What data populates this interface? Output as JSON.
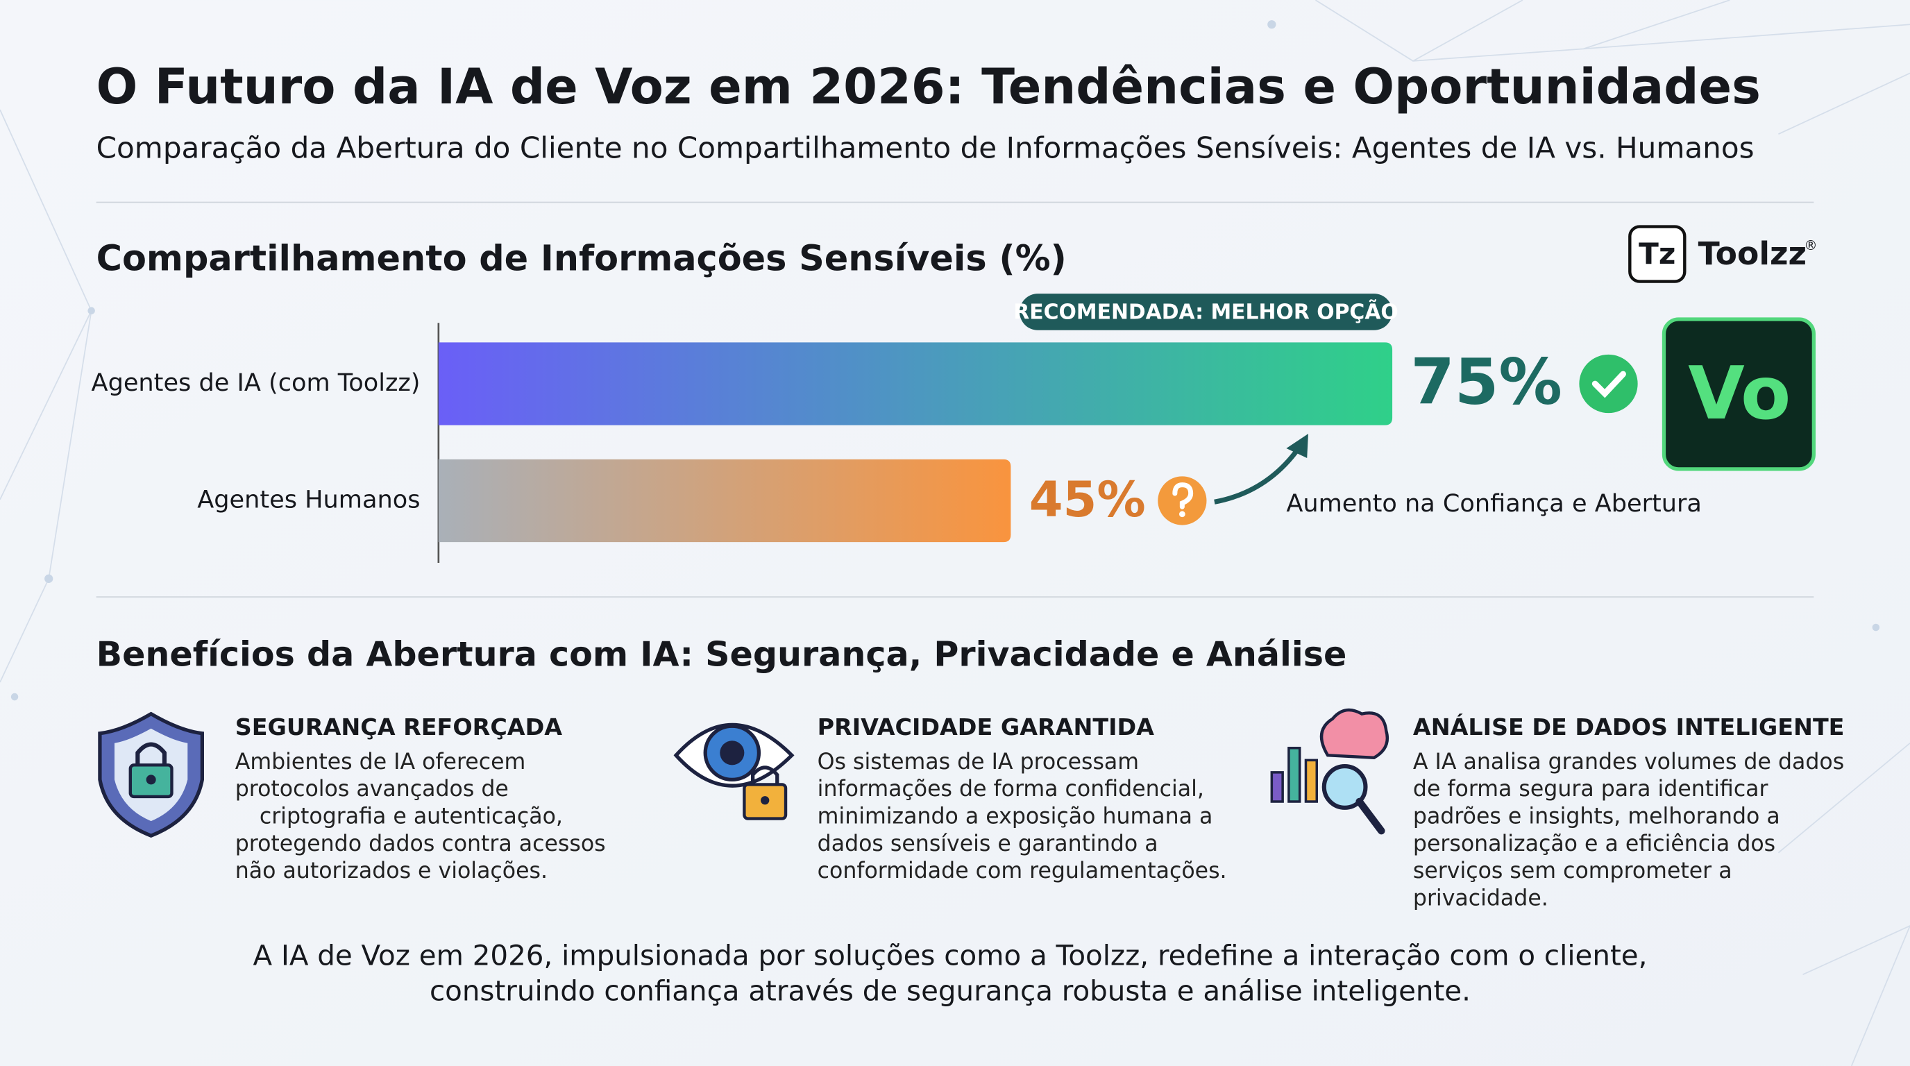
{
  "header": {
    "title": "O Futuro da IA de Voz em 2026: Tendências e Oportunidades",
    "subtitle": "Comparação da Abertura do Cliente no Compartilhamento de Informações Sensíveis: Agentes de IA vs. Humanos"
  },
  "logo": {
    "mark": "Tz",
    "name": "Toolzz",
    "registered": "®",
    "badge": "Vo"
  },
  "chart_data": {
    "type": "bar",
    "orientation": "horizontal",
    "title": "Compartilhamento de Informações Sensíveis (%)",
    "categories": [
      "Agentes de IA (com Toolzz)",
      "Agentes Humanos"
    ],
    "values": [
      75,
      45
    ],
    "value_labels": [
      "75%",
      "45%"
    ],
    "colors": [
      [
        "#6a5ff7",
        "#2fd089"
      ],
      [
        "#a9b0b8",
        "#f9943e"
      ]
    ],
    "label_colors": [
      "#1d6a62",
      "#d97a2e"
    ],
    "badge": "RECOMENDADA: MELHOR OPÇÃO",
    "annotation": "Aumento na Confiança e Abertura"
  },
  "benefits": {
    "title": "Benefícios da Abertura com IA: Segurança, Privacidade e Análise",
    "items": [
      {
        "title": "SEGURANÇA REFORÇADA",
        "lines": [
          "Ambientes de IA oferecem",
          "protocolos avançados de",
          "criptografia e autenticação,",
          "protegendo dados contra acessos",
          "não autorizados e violações."
        ]
      },
      {
        "title": "PRIVACIDADE GARANTIDA",
        "lines": [
          "Os sistemas de IA processam",
          "informações de forma confidencial,",
          "minimizando a exposição humana a",
          "dados sensíveis e garantindo a",
          "conformidade com regulamentações."
        ]
      },
      {
        "title": "ANÁLISE DE DADOS INTELIGENTE",
        "lines": [
          "A IA analisa grandes volumes de dados",
          "de forma segura para identificar",
          "padrões e insights, melhorando a",
          "personalização e a eficiência dos",
          "serviços sem comprometer a",
          "privacidade."
        ]
      }
    ]
  },
  "footer": {
    "lines": [
      "A IA de Voz em 2026, impulsionada por soluções como a Toolzz, redefine a interação com o cliente,",
      "construindo confiança através de segurança robusta e análise inteligente."
    ]
  }
}
